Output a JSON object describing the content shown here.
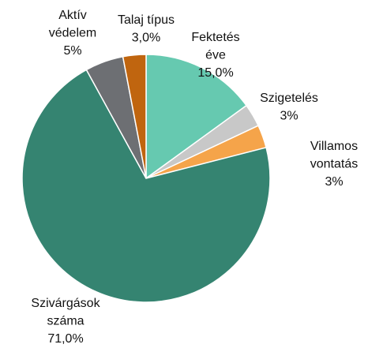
{
  "chart_data": {
    "type": "pie",
    "categories": [
      "Fektetés\néve",
      "Szigetelés",
      "Villamos\nvontatás",
      "Szivárgások\nszáma",
      "Aktív\nvédelem",
      "Talaj típus"
    ],
    "values": [
      15.0,
      3,
      3,
      71.0,
      5,
      3.0
    ],
    "value_labels": [
      "15,0%",
      "3%",
      "3%",
      "71,0%",
      "5%",
      "3,0%"
    ],
    "colors": [
      "#66c9b0",
      "#c8c8c8",
      "#f5a44a",
      "#358471",
      "#6d6f73",
      "#c0650f"
    ]
  }
}
